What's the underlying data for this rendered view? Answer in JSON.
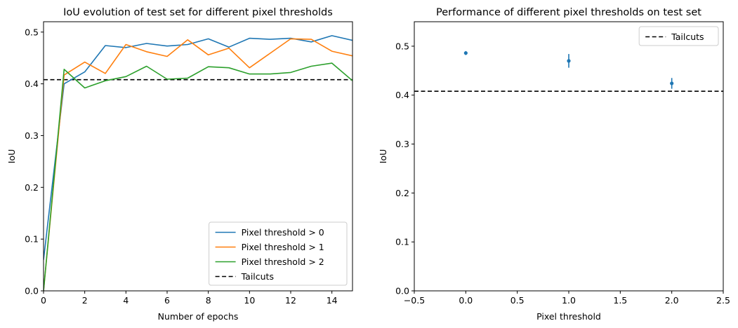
{
  "chart_data": [
    {
      "type": "line",
      "title": "IoU evolution of test set for different pixel thresholds",
      "xlabel": "Number of epochs",
      "ylabel": "IoU",
      "xlim": [
        0,
        15
      ],
      "ylim": [
        0,
        0.52
      ],
      "xticks": [
        0,
        2,
        4,
        6,
        8,
        10,
        12,
        14
      ],
      "yticks": [
        0.0,
        0.1,
        0.2,
        0.3,
        0.4,
        0.5
      ],
      "x": [
        0,
        1,
        2,
        3,
        4,
        5,
        6,
        7,
        8,
        9,
        10,
        11,
        12,
        13,
        14,
        15
      ],
      "series": [
        {
          "name": "Pixel threshold > 0",
          "color": "#1f77b4",
          "values": [
            0.06,
            0.4,
            0.423,
            0.474,
            0.47,
            0.478,
            0.473,
            0.476,
            0.487,
            0.471,
            0.488,
            0.486,
            0.488,
            0.481,
            0.493,
            0.484
          ]
        },
        {
          "name": "Pixel threshold > 1",
          "color": "#ff7f0e",
          "values": [
            0.0,
            0.417,
            0.442,
            0.42,
            0.476,
            0.462,
            0.453,
            0.485,
            0.456,
            0.469,
            0.431,
            0.459,
            0.487,
            0.486,
            0.463,
            0.454
          ]
        },
        {
          "name": "Pixel threshold > 2",
          "color": "#2ca02c",
          "values": [
            0.0,
            0.428,
            0.392,
            0.406,
            0.414,
            0.434,
            0.409,
            0.411,
            0.433,
            0.431,
            0.419,
            0.419,
            0.422,
            0.434,
            0.44,
            0.406
          ]
        }
      ],
      "reference_line": {
        "name": "Tailcuts",
        "value": 0.408,
        "color": "#000000",
        "style": "dashed"
      },
      "legend_position": "lower-right"
    },
    {
      "type": "scatter",
      "title": "Performance of different pixel thresholds on test set",
      "xlabel": "Pixel threshold",
      "ylabel": "IoU",
      "xlim": [
        -0.5,
        2.5
      ],
      "ylim": [
        0,
        0.55
      ],
      "xticks": [
        "−0.5",
        "0.0",
        "0.5",
        "1.0",
        "1.5",
        "2.0",
        "2.5"
      ],
      "yticks": [
        "0.0",
        "0.1",
        "0.2",
        "0.3",
        "0.4",
        "0.5"
      ],
      "points": [
        {
          "x": 0,
          "y": 0.486,
          "err": 0.004
        },
        {
          "x": 1,
          "y": 0.47,
          "err": 0.014
        },
        {
          "x": 2,
          "y": 0.424,
          "err": 0.011
        }
      ],
      "point_color": "#1f77b4",
      "reference_line": {
        "name": "Tailcuts",
        "value": 0.408,
        "color": "#000000",
        "style": "dashed"
      },
      "legend_position": "top-right"
    }
  ]
}
